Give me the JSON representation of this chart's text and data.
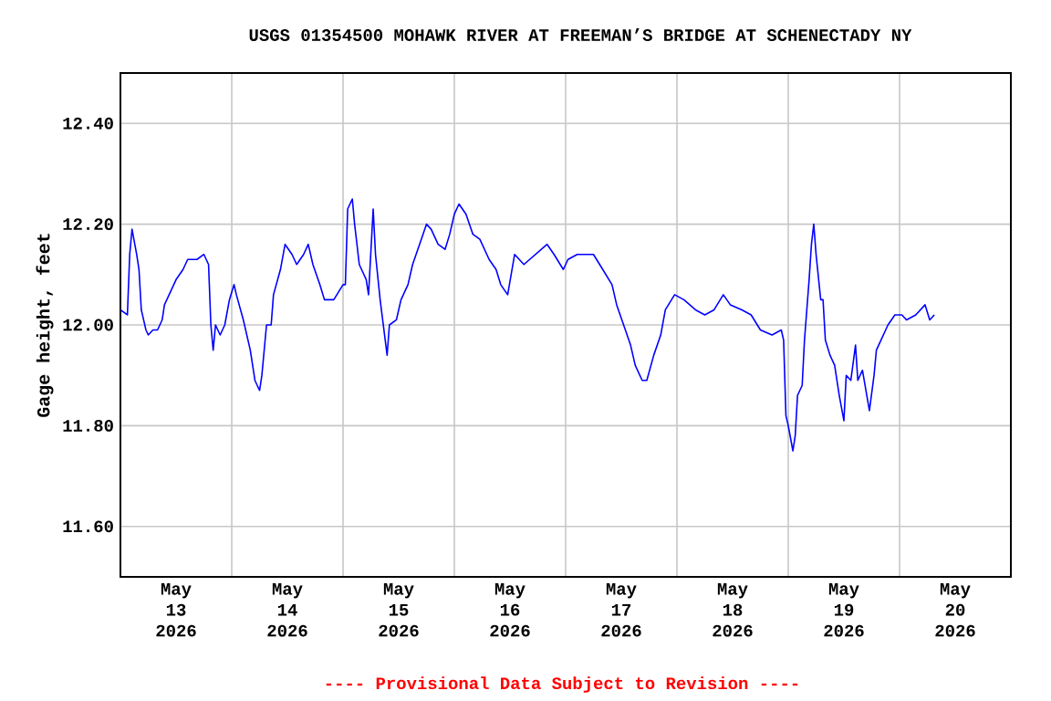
{
  "chart_data": {
    "type": "line",
    "title": "USGS 01354500 MOHAWK RIVER AT FREEMAN’S BRIDGE AT SCHENECTADY NY",
    "ylabel": "Gage height, feet",
    "annotations": [
      "---- Provisional Data Subject to Revision ----"
    ],
    "xlim": [
      "2026-05-13T00:00",
      "2026-05-21T00:00"
    ],
    "xticks": [
      {
        "value": "2026-05-13T12:00",
        "label": "May 13 2026"
      },
      {
        "value": "2026-05-14T00:00",
        "label": null
      },
      {
        "value": "2026-05-14T12:00",
        "label": "May 14 2026"
      },
      {
        "value": "2026-05-15T00:00",
        "label": null
      },
      {
        "value": "2026-05-15T12:00",
        "label": "May 15 2026"
      },
      {
        "value": "2026-05-16T00:00",
        "label": null
      },
      {
        "value": "2026-05-16T12:00",
        "label": "May 16 2026"
      },
      {
        "value": "2026-05-17T00:00",
        "label": null
      },
      {
        "value": "2026-05-17T12:00",
        "label": "May 17 2026"
      },
      {
        "value": "2026-05-18T00:00",
        "label": null
      },
      {
        "value": "2026-05-18T12:00",
        "label": "May 18 2026"
      },
      {
        "value": "2026-05-19T00:00",
        "label": null
      },
      {
        "value": "2026-05-19T12:00",
        "label": "May 19 2026"
      },
      {
        "value": "2026-05-20T00:00",
        "label": null
      },
      {
        "value": "2026-05-20T12:00",
        "label": "May 20 2026"
      }
    ],
    "ylim": [
      11.5,
      12.5
    ],
    "yticks": [
      {
        "value": 11.6,
        "label": "11.60"
      },
      {
        "value": 11.8,
        "label": "11.80"
      },
      {
        "value": 12.0,
        "label": "12.00"
      },
      {
        "value": 12.2,
        "label": "12.20"
      },
      {
        "value": 12.4,
        "label": "12.40"
      }
    ],
    "grid": true,
    "marker": "none",
    "line_style": "solid",
    "series": [
      {
        "color": "#0000ff",
        "x": [
          "2026-05-13T00:00",
          "2026-05-13T01:30",
          "2026-05-13T02:00",
          "2026-05-13T02:30",
          "2026-05-13T03:30",
          "2026-05-13T04:00",
          "2026-05-13T04:30",
          "2026-05-13T05:30",
          "2026-05-13T06:00",
          "2026-05-13T07:00",
          "2026-05-13T08:00",
          "2026-05-13T09:00",
          "2026-05-13T09:30",
          "2026-05-13T10:30",
          "2026-05-13T12:00",
          "2026-05-13T13:30",
          "2026-05-13T14:30",
          "2026-05-13T16:30",
          "2026-05-13T18:00",
          "2026-05-13T19:00",
          "2026-05-13T19:30",
          "2026-05-13T20:00",
          "2026-05-13T20:30",
          "2026-05-13T21:30",
          "2026-05-13T22:30",
          "2026-05-13T23:30",
          "2026-05-14T00:30",
          "2026-05-14T01:00",
          "2026-05-14T02:30",
          "2026-05-14T04:00",
          "2026-05-14T05:00",
          "2026-05-14T06:00",
          "2026-05-14T06:30",
          "2026-05-14T07:30",
          "2026-05-14T08:30",
          "2026-05-14T09:00",
          "2026-05-14T10:30",
          "2026-05-14T11:30",
          "2026-05-14T13:00",
          "2026-05-14T14:00",
          "2026-05-14T15:30",
          "2026-05-14T16:30",
          "2026-05-14T17:30",
          "2026-05-14T19:00",
          "2026-05-14T20:00",
          "2026-05-14T22:00",
          "2026-05-15T00:00",
          "2026-05-15T00:30",
          "2026-05-15T01:00",
          "2026-05-15T02:00",
          "2026-05-15T02:30",
          "2026-05-15T03:30",
          "2026-05-15T05:00",
          "2026-05-15T05:30",
          "2026-05-15T06:30",
          "2026-05-15T07:00",
          "2026-05-15T08:00",
          "2026-05-15T09:30",
          "2026-05-15T10:00",
          "2026-05-15T11:30",
          "2026-05-15T12:30",
          "2026-05-15T14:00",
          "2026-05-15T15:00",
          "2026-05-15T16:30",
          "2026-05-15T18:00",
          "2026-05-15T19:00",
          "2026-05-15T20:30",
          "2026-05-15T22:00",
          "2026-05-15T23:00",
          "2026-05-16T00:00",
          "2026-05-16T01:00",
          "2026-05-16T02:30",
          "2026-05-16T04:00",
          "2026-05-16T05:30",
          "2026-05-16T07:30",
          "2026-05-16T09:00",
          "2026-05-16T10:00",
          "2026-05-16T11:30",
          "2026-05-16T13:00",
          "2026-05-16T15:00",
          "2026-05-16T17:30",
          "2026-05-16T20:00",
          "2026-05-16T21:30",
          "2026-05-16T23:30",
          "2026-05-17T00:30",
          "2026-05-17T02:30",
          "2026-05-17T06:00",
          "2026-05-17T08:00",
          "2026-05-17T10:00",
          "2026-05-17T11:00",
          "2026-05-17T12:30",
          "2026-05-17T14:00",
          "2026-05-17T15:00",
          "2026-05-17T16:30",
          "2026-05-17T17:30",
          "2026-05-17T19:00",
          "2026-05-17T20:30",
          "2026-05-17T21:30",
          "2026-05-17T23:30",
          "2026-05-18T01:30",
          "2026-05-18T04:00",
          "2026-05-18T06:00",
          "2026-05-18T08:00",
          "2026-05-18T10:00",
          "2026-05-18T11:30",
          "2026-05-18T14:00",
          "2026-05-18T16:00",
          "2026-05-18T18:00",
          "2026-05-18T20:30",
          "2026-05-18T22:30",
          "2026-05-18T23:00",
          "2026-05-18T23:30",
          "2026-05-19T00:00",
          "2026-05-19T01:00",
          "2026-05-19T01:30",
          "2026-05-19T02:00",
          "2026-05-19T03:00",
          "2026-05-19T03:30",
          "2026-05-19T04:00",
          "2026-05-19T04:30",
          "2026-05-19T05:00",
          "2026-05-19T05:30",
          "2026-05-19T06:00",
          "2026-05-19T07:00",
          "2026-05-19T07:30",
          "2026-05-19T08:00",
          "2026-05-19T09:00",
          "2026-05-19T10:00",
          "2026-05-19T11:00",
          "2026-05-19T12:00",
          "2026-05-19T12:30",
          "2026-05-19T13:30",
          "2026-05-19T14:30",
          "2026-05-19T15:00",
          "2026-05-19T16:00",
          "2026-05-19T17:30",
          "2026-05-19T18:30",
          "2026-05-19T19:00",
          "2026-05-19T20:00",
          "2026-05-19T21:30",
          "2026-05-19T23:00",
          "2026-05-20T00:30",
          "2026-05-20T01:30",
          "2026-05-20T03:30",
          "2026-05-20T04:30",
          "2026-05-20T05:30",
          "2026-05-20T06:30",
          "2026-05-20T07:30"
        ],
        "values": [
          12.03,
          12.02,
          12.14,
          12.19,
          12.14,
          12.11,
          12.03,
          11.99,
          11.98,
          11.99,
          11.99,
          12.01,
          12.04,
          12.06,
          12.09,
          12.11,
          12.13,
          12.13,
          12.14,
          12.12,
          12.0,
          11.95,
          12.0,
          11.98,
          12.0,
          12.05,
          12.08,
          12.06,
          12.01,
          11.95,
          11.89,
          11.87,
          11.9,
          12.0,
          12.0,
          12.06,
          12.11,
          12.16,
          12.14,
          12.12,
          12.14,
          12.16,
          12.12,
          12.08,
          12.05,
          12.05,
          12.08,
          12.08,
          12.23,
          12.25,
          12.2,
          12.12,
          12.09,
          12.06,
          12.23,
          12.14,
          12.05,
          11.94,
          12.0,
          12.01,
          12.05,
          12.08,
          12.12,
          12.16,
          12.2,
          12.19,
          12.16,
          12.15,
          12.18,
          12.22,
          12.24,
          12.22,
          12.18,
          12.17,
          12.13,
          12.11,
          12.08,
          12.06,
          12.14,
          12.12,
          12.14,
          12.16,
          12.14,
          12.11,
          12.13,
          12.14,
          12.14,
          12.11,
          12.08,
          12.04,
          12.0,
          11.96,
          11.92,
          11.89,
          11.89,
          11.94,
          11.98,
          12.03,
          12.06,
          12.05,
          12.03,
          12.02,
          12.03,
          12.06,
          12.04,
          12.03,
          12.02,
          11.99,
          11.98,
          11.99,
          11.97,
          11.82,
          11.8,
          11.75,
          11.78,
          11.86,
          11.88,
          11.97,
          12.03,
          12.09,
          12.16,
          12.2,
          12.14,
          12.05,
          12.05,
          11.97,
          11.94,
          11.92,
          11.86,
          11.81,
          11.9,
          11.89,
          11.96,
          11.89,
          11.91,
          11.83,
          11.9,
          11.95,
          11.97,
          12.0,
          12.02,
          12.02,
          12.01,
          12.02,
          12.03,
          12.04,
          12.01,
          12.02
        ]
      }
    ]
  }
}
